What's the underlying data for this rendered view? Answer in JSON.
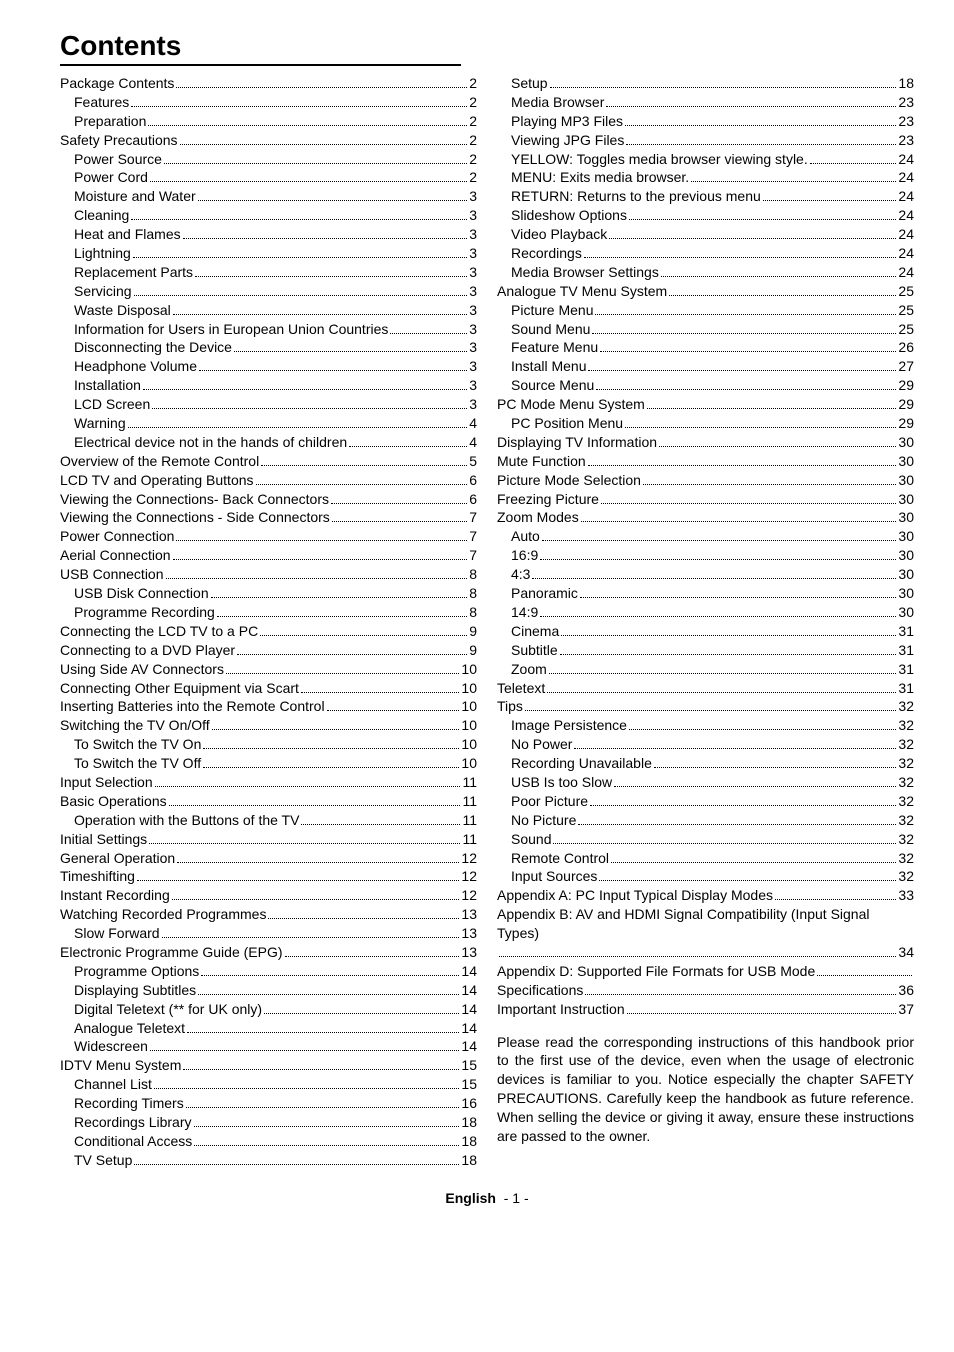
{
  "title": "Contents",
  "footer": {
    "label": "English",
    "page": "- 1 -"
  },
  "closing_paragraph": "Please read the corresponding instructions of this handbook prior to the first use of the device, even when the usage of electronic devices is familiar to you. Notice especially the chapter SAFETY PRECAUTIONS. Carefully keep the handbook as future reference. When selling the device or giving it away, ensure these instructions are passed to the owner.",
  "left": [
    {
      "label": "Package Contents",
      "page": "2",
      "indent": 0
    },
    {
      "label": "Features",
      "page": "2",
      "indent": 1
    },
    {
      "label": "Preparation",
      "page": "2",
      "indent": 1
    },
    {
      "label": "Safety Precautions",
      "page": "2",
      "indent": 0
    },
    {
      "label": "Power Source",
      "page": "2",
      "indent": 1
    },
    {
      "label": "Power Cord",
      "page": "2",
      "indent": 1
    },
    {
      "label": "Moisture and Water",
      "page": "3",
      "indent": 1
    },
    {
      "label": "Cleaning",
      "page": "3",
      "indent": 1
    },
    {
      "label": "Heat and Flames",
      "page": "3",
      "indent": 1
    },
    {
      "label": "Lightning",
      "page": "3",
      "indent": 1
    },
    {
      "label": "Replacement Parts",
      "page": "3",
      "indent": 1
    },
    {
      "label": "Servicing",
      "page": "3",
      "indent": 1
    },
    {
      "label": "Waste Disposal",
      "page": "3",
      "indent": 1
    },
    {
      "label": "Information for Users  in European Union Countries",
      "page": "3",
      "indent": 1,
      "wrap": true
    },
    {
      "label": "Disconnecting the Device",
      "page": "3",
      "indent": 1
    },
    {
      "label": "Headphone Volume",
      "page": "3",
      "indent": 1
    },
    {
      "label": "Installation",
      "page": "3",
      "indent": 1
    },
    {
      "label": "LCD Screen",
      "page": "3",
      "indent": 1
    },
    {
      "label": "Warning",
      "page": "4",
      "indent": 1
    },
    {
      "label": "Electrical device not in the hands of children",
      "page": "4",
      "indent": 1
    },
    {
      "label": "Overview of the Remote Control",
      "page": "5",
      "indent": 0
    },
    {
      "label": "LCD TV and Operating Buttons",
      "page": "6",
      "indent": 0
    },
    {
      "label": "Viewing the Connections- Back Connectors",
      "page": "6",
      "indent": 0
    },
    {
      "label": "Viewing the Connections - Side Connectors",
      "page": "7",
      "indent": 0
    },
    {
      "label": "Power Connection",
      "page": "7",
      "indent": 0
    },
    {
      "label": "Aerial Connection",
      "page": "7",
      "indent": 0
    },
    {
      "label": "USB Connection",
      "page": "8",
      "indent": 0
    },
    {
      "label": "USB Disk Connection",
      "page": "8",
      "indent": 1
    },
    {
      "label": "Programme Recording",
      "page": "8",
      "indent": 1
    },
    {
      "label": "Connecting the LCD TV to a PC",
      "page": "9",
      "indent": 0
    },
    {
      "label": "Connecting to a DVD Player",
      "page": "9",
      "indent": 0
    },
    {
      "label": "Using Side AV Connectors",
      "page": "10",
      "indent": 0
    },
    {
      "label": "Connecting Other Equipment via Scart",
      "page": "10",
      "indent": 0
    },
    {
      "label": "Inserting Batteries into the Remote Control",
      "page": "10",
      "indent": 0
    },
    {
      "label": "Switching the TV On/Off",
      "page": "10",
      "indent": 0
    },
    {
      "label": "To Switch the TV On",
      "page": "10",
      "indent": 1
    },
    {
      "label": "To Switch the TV Off",
      "page": "10",
      "indent": 1
    },
    {
      "label": "Input Selection",
      "page": "11",
      "indent": 0
    },
    {
      "label": "Basic Operations",
      "page": "11",
      "indent": 0
    },
    {
      "label": "Operation with the Buttons of the TV",
      "page": "11",
      "indent": 1
    },
    {
      "label": "Initial Settings",
      "page": "11",
      "indent": 0
    },
    {
      "label": "General Operation",
      "page": "12",
      "indent": 0
    },
    {
      "label": "Timeshifting ",
      "page": "12",
      "indent": 0
    },
    {
      "label": "Instant Recording",
      "page": "12",
      "indent": 0
    },
    {
      "label": "Watching Recorded Programmes ",
      "page": "13",
      "indent": 0
    },
    {
      "label": "Slow Forward",
      "page": "13",
      "indent": 1
    },
    {
      "label": "Electronic Programme Guide (EPG)",
      "page": "13",
      "indent": 0
    },
    {
      "label": "Programme Options",
      "page": "14",
      "indent": 1
    },
    {
      "label": "Displaying Subtitles",
      "page": "14",
      "indent": 1
    },
    {
      "label": "Digital Teletext (** for UK only)",
      "page": "14",
      "indent": 1
    },
    {
      "label": "Analogue Teletext",
      "page": "14",
      "indent": 1
    },
    {
      "label": "Widescreen",
      "page": "14",
      "indent": 1
    },
    {
      "label": "IDTV Menu System",
      "page": "15",
      "indent": 0
    },
    {
      "label": "Channel List",
      "page": "15",
      "indent": 1
    },
    {
      "label": "Recording Timers",
      "page": "16",
      "indent": 1
    },
    {
      "label": "Recordings Library",
      "page": "18",
      "indent": 1
    },
    {
      "label": "Conditional Access",
      "page": "18",
      "indent": 1
    },
    {
      "label": "TV Setup",
      "page": "18",
      "indent": 1
    }
  ],
  "right": [
    {
      "label": "Setup",
      "page": "18",
      "indent": 1
    },
    {
      "label": "Media Browser",
      "page": "23",
      "indent": 1
    },
    {
      "label": "Playing MP3 Files",
      "page": "23",
      "indent": 1
    },
    {
      "label": "Viewing JPG Files",
      "page": "23",
      "indent": 1
    },
    {
      "label": "YELLOW: Toggles media browser viewing style. ",
      "page": "24",
      "indent": 1,
      "wrap": true
    },
    {
      "label": "MENU: Exits media browser.",
      "page": "24",
      "indent": 1
    },
    {
      "label": "RETURN: Returns to the previous menu",
      "page": "24",
      "indent": 1
    },
    {
      "label": "Slideshow Options",
      "page": "24",
      "indent": 1
    },
    {
      "label": "Video Playback",
      "page": "24",
      "indent": 1
    },
    {
      "label": "Recordings",
      "page": "24",
      "indent": 1
    },
    {
      "label": "Media Browser Settings",
      "page": "24",
      "indent": 1
    },
    {
      "label": "Analogue TV Menu System",
      "page": "25",
      "indent": 0
    },
    {
      "label": "Picture Menu",
      "page": "25",
      "indent": 1
    },
    {
      "label": "Sound Menu",
      "page": "25",
      "indent": 1
    },
    {
      "label": "Feature Menu",
      "page": "26",
      "indent": 1
    },
    {
      "label": "Install Menu",
      "page": "27",
      "indent": 1
    },
    {
      "label": "Source Menu",
      "page": "29",
      "indent": 1
    },
    {
      "label": "PC Mode Menu System",
      "page": "29",
      "indent": 0
    },
    {
      "label": "PC Position Menu",
      "page": "29",
      "indent": 1
    },
    {
      "label": "Displaying TV Information",
      "page": "30",
      "indent": 0
    },
    {
      "label": "Mute Function",
      "page": "30",
      "indent": 0
    },
    {
      "label": "Picture Mode Selection",
      "page": "30",
      "indent": 0
    },
    {
      "label": "Freezing Picture",
      "page": "30",
      "indent": 0
    },
    {
      "label": "Zoom Modes",
      "page": "30",
      "indent": 0
    },
    {
      "label": "Auto",
      "page": "30",
      "indent": 1
    },
    {
      "label": "16:9",
      "page": "30",
      "indent": 1
    },
    {
      "label": "4:3",
      "page": "30",
      "indent": 1
    },
    {
      "label": "Panoramic",
      "page": "30",
      "indent": 1
    },
    {
      "label": "14:9",
      "page": "30",
      "indent": 1
    },
    {
      "label": "Cinema",
      "page": "31",
      "indent": 1
    },
    {
      "label": "Subtitle",
      "page": "31",
      "indent": 1
    },
    {
      "label": "Zoom",
      "page": "31",
      "indent": 1
    },
    {
      "label": "Teletext",
      "page": "31",
      "indent": 0
    },
    {
      "label": "Tips",
      "page": "32",
      "indent": 0
    },
    {
      "label": "Image Persistence",
      "page": "32",
      "indent": 1
    },
    {
      "label": "No Power",
      "page": "32",
      "indent": 1
    },
    {
      "label": "Recording Unavailable",
      "page": "32",
      "indent": 1
    },
    {
      "label": "USB Is too Slow",
      "page": "32",
      "indent": 1
    },
    {
      "label": "Poor Picture",
      "page": "32",
      "indent": 1
    },
    {
      "label": "No Picture",
      "page": "32",
      "indent": 1
    },
    {
      "label": "Sound",
      "page": "32",
      "indent": 1
    },
    {
      "label": "Remote Control",
      "page": "32",
      "indent": 1
    },
    {
      "label": "Input Sources",
      "page": "32",
      "indent": 1
    },
    {
      "label": "Appendix A: PC Input Typical Display Modes",
      "page": "33",
      "indent": 0
    },
    {
      "label": "Appendix B: AV and HDMI Signal Compatibility (Input Signal Types)",
      "page": "34",
      "indent": 0,
      "wrap": true
    },
    {
      "label": "Appendix D: Supported File Formats for USB Mode",
      "page": "",
      "indent": 0,
      "wrap": true
    },
    {
      "label": "Specifications",
      "page": "36",
      "indent": 0
    },
    {
      "label": "Important Instruction",
      "page": "37",
      "indent": 0
    }
  ]
}
